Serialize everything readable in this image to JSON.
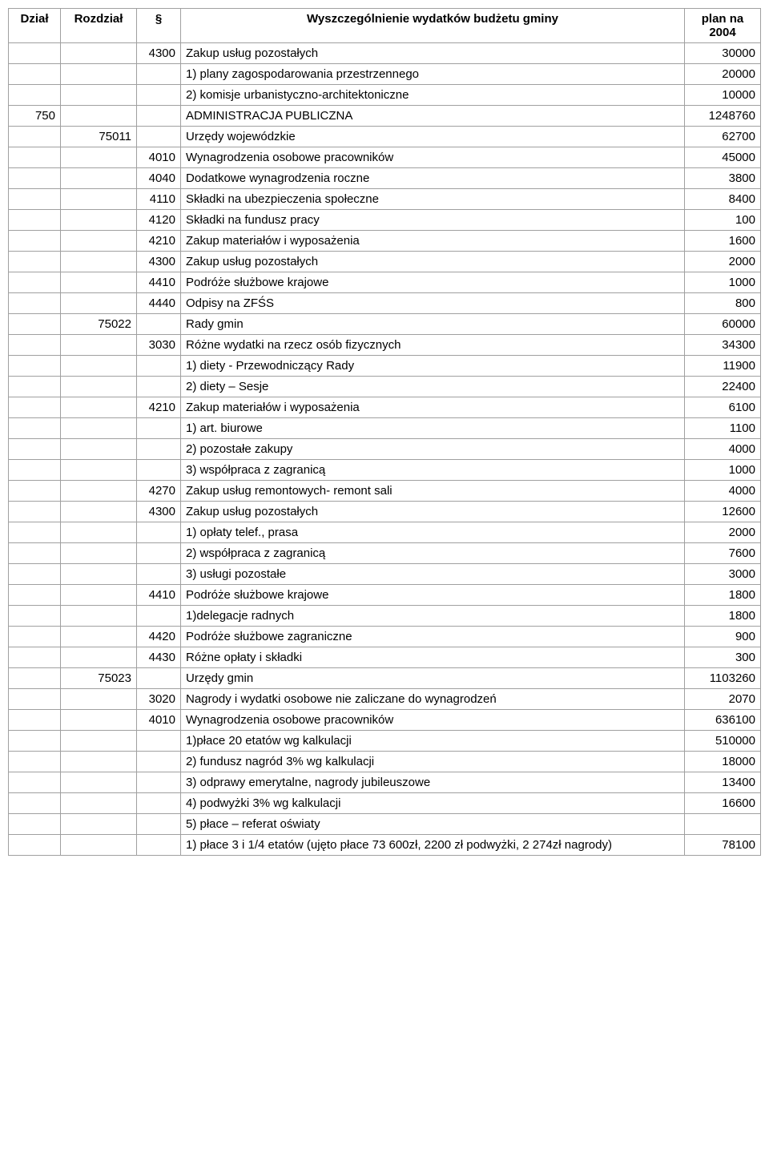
{
  "headers": {
    "dzial": "Dział",
    "rozdzial": "Rozdział",
    "paragraf": "§",
    "desc": "Wyszczególnienie wydatków budżetu gminy",
    "plan": "plan na 2004"
  },
  "rows": [
    {
      "d": "",
      "r": "",
      "p": "4300",
      "t": "Zakup usług pozostałych",
      "v": "30000"
    },
    {
      "d": "",
      "r": "",
      "p": "",
      "t": "1) plany zagospodarowania przestrzennego",
      "v": "20000"
    },
    {
      "d": "",
      "r": "",
      "p": "",
      "t": "2) komisje urbanistyczno-architektoniczne",
      "v": "10000"
    },
    {
      "d": "750",
      "r": "",
      "p": "",
      "t": "ADMINISTRACJA PUBLICZNA",
      "v": "1248760"
    },
    {
      "d": "",
      "r": "75011",
      "p": "",
      "t": "Urzędy wojewódzkie",
      "v": "62700"
    },
    {
      "d": "",
      "r": "",
      "p": "4010",
      "t": "Wynagrodzenia osobowe pracowników",
      "v": "45000"
    },
    {
      "d": "",
      "r": "",
      "p": "4040",
      "t": "Dodatkowe wynagrodzenia roczne",
      "v": "3800"
    },
    {
      "d": "",
      "r": "",
      "p": "4110",
      "t": "Składki na ubezpieczenia społeczne",
      "v": "8400"
    },
    {
      "d": "",
      "r": "",
      "p": "4120",
      "t": "Składki na fundusz pracy",
      "v": "100"
    },
    {
      "d": "",
      "r": "",
      "p": "4210",
      "t": "Zakup materiałów i wyposażenia",
      "v": "1600"
    },
    {
      "d": "",
      "r": "",
      "p": "4300",
      "t": "Zakup usług pozostałych",
      "v": "2000"
    },
    {
      "d": "",
      "r": "",
      "p": "4410",
      "t": "Podróże służbowe krajowe",
      "v": "1000"
    },
    {
      "d": "",
      "r": "",
      "p": "4440",
      "t": "Odpisy na ZFŚS",
      "v": "800"
    },
    {
      "d": "",
      "r": "75022",
      "p": "",
      "t": "Rady gmin",
      "v": "60000"
    },
    {
      "d": "",
      "r": "",
      "p": "3030",
      "t": "Różne wydatki na rzecz osób fizycznych",
      "v": "34300"
    },
    {
      "d": "",
      "r": "",
      "p": "",
      "t": "1) diety - Przewodniczący Rady",
      "v": "11900"
    },
    {
      "d": "",
      "r": "",
      "p": "",
      "t": "2) diety – Sesje",
      "v": "22400"
    },
    {
      "d": "",
      "r": "",
      "p": "4210",
      "t": "Zakup materiałów i wyposażenia",
      "v": "6100"
    },
    {
      "d": "",
      "r": "",
      "p": "",
      "t": "1) art. biurowe",
      "v": "1100"
    },
    {
      "d": "",
      "r": "",
      "p": "",
      "t": "2) pozostałe zakupy",
      "v": "4000"
    },
    {
      "d": "",
      "r": "",
      "p": "",
      "t": "3) współpraca z zagranicą",
      "v": "1000"
    },
    {
      "d": "",
      "r": "",
      "p": "4270",
      "t": "Zakup usług remontowych- remont sali",
      "v": "4000"
    },
    {
      "d": "",
      "r": "",
      "p": "4300",
      "t": "Zakup usług pozostałych",
      "v": "12600"
    },
    {
      "d": "",
      "r": "",
      "p": "",
      "t": "1) opłaty telef., prasa",
      "v": "2000"
    },
    {
      "d": "",
      "r": "",
      "p": "",
      "t": "2) współpraca z zagranicą",
      "v": "7600"
    },
    {
      "d": "",
      "r": "",
      "p": "",
      "t": "3) usługi pozostałe",
      "v": "3000"
    },
    {
      "d": "",
      "r": "",
      "p": "4410",
      "t": "Podróże służbowe krajowe",
      "v": "1800"
    },
    {
      "d": "",
      "r": "",
      "p": "",
      "t": "1)delegacje radnych",
      "v": "1800"
    },
    {
      "d": "",
      "r": "",
      "p": "4420",
      "t": "Podróże służbowe zagraniczne",
      "v": "900"
    },
    {
      "d": "",
      "r": "",
      "p": "4430",
      "t": "Różne opłaty i składki",
      "v": "300"
    },
    {
      "d": "",
      "r": "75023",
      "p": "",
      "t": "Urzędy gmin",
      "v": "1103260"
    },
    {
      "d": "",
      "r": "",
      "p": "3020",
      "t": "Nagrody i wydatki osobowe nie zaliczane do wynagrodzeń",
      "v": "2070"
    },
    {
      "d": "",
      "r": "",
      "p": "4010",
      "t": "Wynagrodzenia osobowe pracowników",
      "v": "636100"
    },
    {
      "d": "",
      "r": "",
      "p": "",
      "t": "1)płace 20 etatów wg kalkulacji",
      "v": "510000"
    },
    {
      "d": "",
      "r": "",
      "p": "",
      "t": "2) fundusz nagród 3% wg kalkulacji",
      "v": "18000"
    },
    {
      "d": "",
      "r": "",
      "p": "",
      "t": "3) odprawy emerytalne, nagrody jubileuszowe",
      "v": "13400"
    },
    {
      "d": "",
      "r": "",
      "p": "",
      "t": "4) podwyżki 3% wg kalkulacji",
      "v": "16600"
    },
    {
      "d": "",
      "r": "",
      "p": "",
      "t": "5) płace – referat oświaty",
      "v": ""
    },
    {
      "d": "",
      "r": "",
      "p": "",
      "t": "1) płace 3 i 1/4 etatów (ujęto płace 73 600zł, 2200 zł podwyżki, 2 274zł nagrody)",
      "v": "78100"
    }
  ]
}
